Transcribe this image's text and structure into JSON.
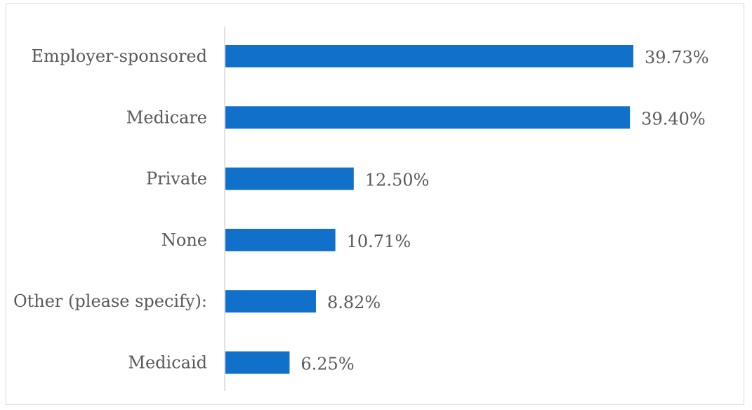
{
  "chart_data": {
    "type": "bar",
    "orientation": "horizontal",
    "title": "",
    "xlabel": "",
    "ylabel": "",
    "categories": [
      "Employer-sponsored",
      "Medicare",
      "Private",
      "None",
      "Other (please specify):",
      "Medicaid"
    ],
    "values": [
      39.73,
      39.4,
      12.5,
      10.71,
      8.82,
      6.25
    ],
    "value_labels": [
      "39.73%",
      "39.40%",
      "12.50%",
      "10.71%",
      "8.82%",
      "6.25%"
    ],
    "xlim": [
      0,
      40
    ],
    "grid": false,
    "legend": "none",
    "colors": {
      "bar": "#1070CA",
      "axis": "#D9D9D9",
      "text": "#595959",
      "border": "#D9D9D9"
    }
  }
}
